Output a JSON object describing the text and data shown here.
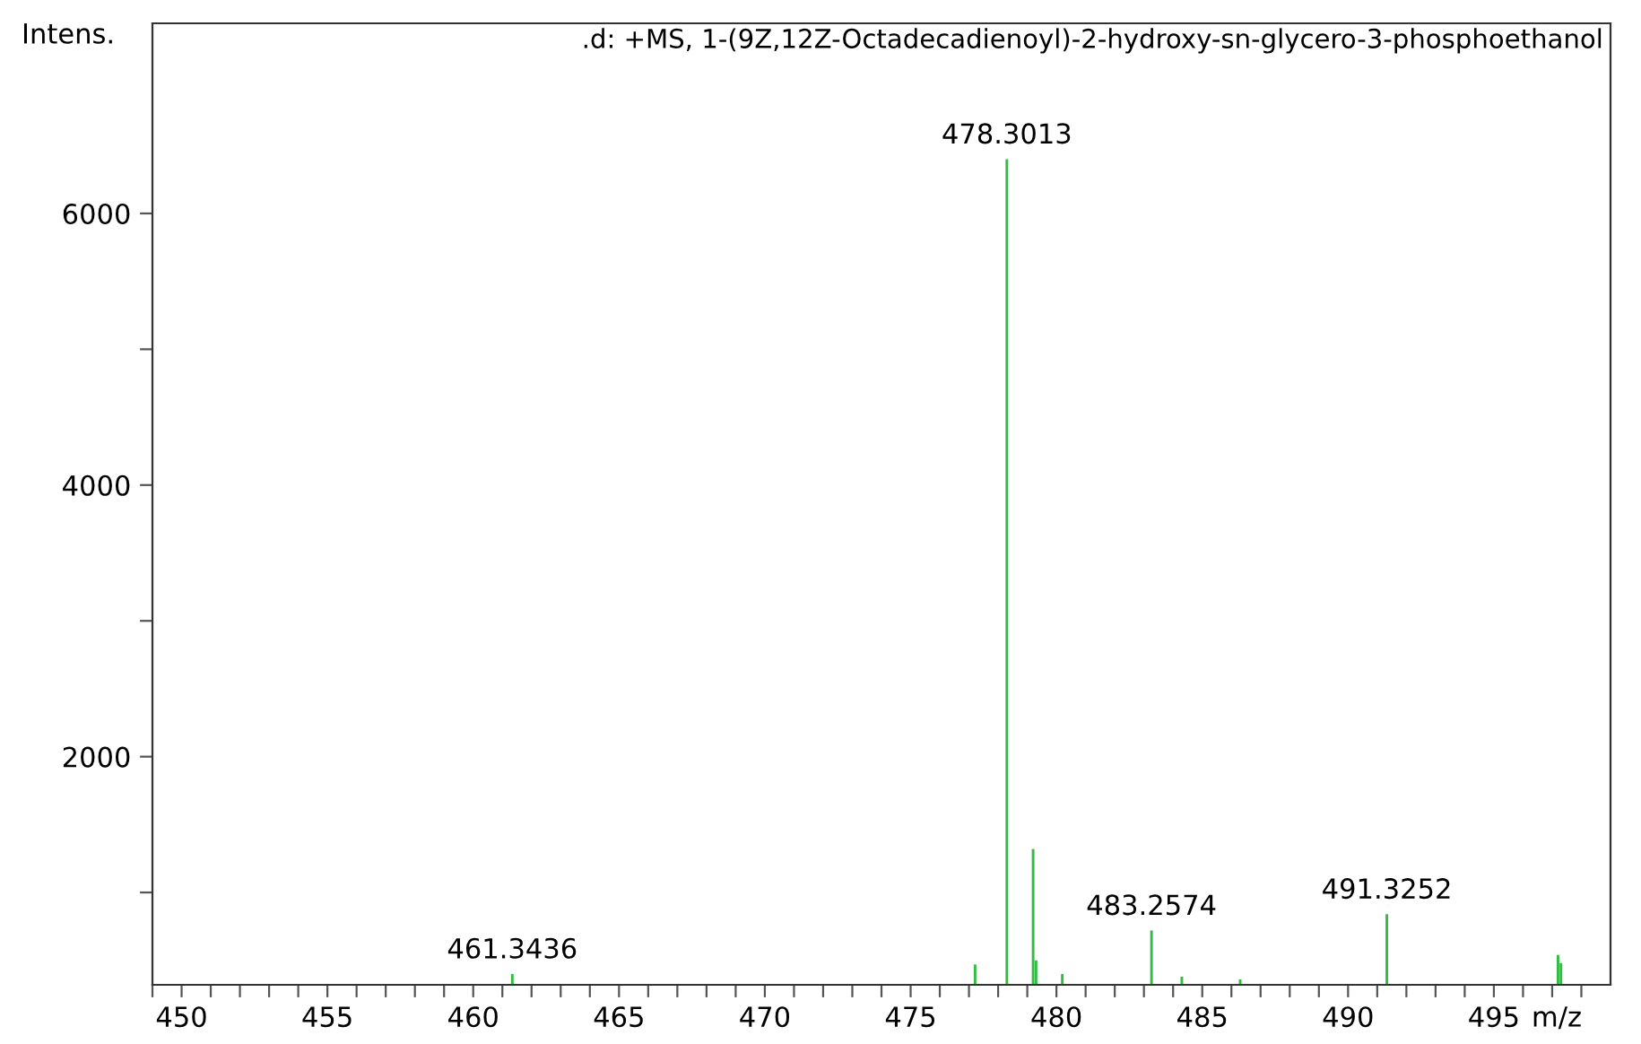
{
  "chart_data": {
    "type": "bar",
    "title": ".d: +MS, 1-(9Z,12Z-Octadecadienoyl)-2-hydroxy-sn-glycero-3-phosphoethanol",
    "xlabel": "m/z",
    "ylabel": "Intens.",
    "x": [
      461.34,
      477.21,
      478.3,
      479.2,
      479.3,
      480.2,
      483.26,
      484.3,
      486.3,
      491.33,
      497.2,
      497.3
    ],
    "values": [
      400,
      470,
      6400,
      1320,
      500,
      400,
      720,
      380,
      360,
      840,
      540,
      480
    ],
    "color": "#33bb44",
    "xlim": [
      449,
      499
    ],
    "ylim": [
      320,
      7400
    ],
    "xticks": [
      {
        "value": 449,
        "label": null
      },
      450,
      {
        "value": 451,
        "label": null
      },
      {
        "value": 452,
        "label": null
      },
      {
        "value": 453,
        "label": null
      },
      {
        "value": 454,
        "label": null
      },
      455,
      {
        "value": 456,
        "label": null
      },
      {
        "value": 457,
        "label": null
      },
      {
        "value": 458,
        "label": null
      },
      {
        "value": 459,
        "label": null
      },
      460,
      {
        "value": 461,
        "label": null
      },
      {
        "value": 462,
        "label": null
      },
      {
        "value": 463,
        "label": null
      },
      {
        "value": 464,
        "label": null
      },
      465,
      {
        "value": 466,
        "label": null
      },
      {
        "value": 467,
        "label": null
      },
      {
        "value": 468,
        "label": null
      },
      {
        "value": 469,
        "label": null
      },
      470,
      {
        "value": 471,
        "label": null
      },
      {
        "value": 472,
        "label": null
      },
      {
        "value": 473,
        "label": null
      },
      {
        "value": 474,
        "label": null
      },
      475,
      {
        "value": 476,
        "label": null
      },
      {
        "value": 477,
        "label": null
      },
      {
        "value": 478,
        "label": null
      },
      {
        "value": 479,
        "label": null
      },
      480,
      {
        "value": 481,
        "label": null
      },
      {
        "value": 482,
        "label": null
      },
      {
        "value": 483,
        "label": null
      },
      {
        "value": 484,
        "label": null
      },
      485,
      {
        "value": 486,
        "label": null
      },
      {
        "value": 487,
        "label": null
      },
      {
        "value": 488,
        "label": null
      },
      {
        "value": 489,
        "label": null
      },
      490,
      {
        "value": 491,
        "label": null
      },
      {
        "value": 492,
        "label": null
      },
      {
        "value": 493,
        "label": null
      },
      {
        "value": 494,
        "label": null
      },
      495,
      {
        "value": 496,
        "label": null
      },
      {
        "value": 497,
        "label": null
      },
      {
        "value": 498,
        "label": null
      }
    ],
    "yticks": [
      {
        "value": 1000,
        "label": null
      },
      2000,
      {
        "value": 3000,
        "label": null
      },
      4000,
      {
        "value": 5000,
        "label": null
      },
      6000
    ],
    "annotations": [
      {
        "text": "461.3436",
        "x": 461.34,
        "y": 400
      },
      {
        "text": "478.3013",
        "x": 478.3,
        "y": 6400
      },
      {
        "text": "483.2574",
        "x": 483.26,
        "y": 720
      },
      {
        "text": "491.3252",
        "x": 491.33,
        "y": 840
      }
    ],
    "grid": false,
    "legend": false
  }
}
